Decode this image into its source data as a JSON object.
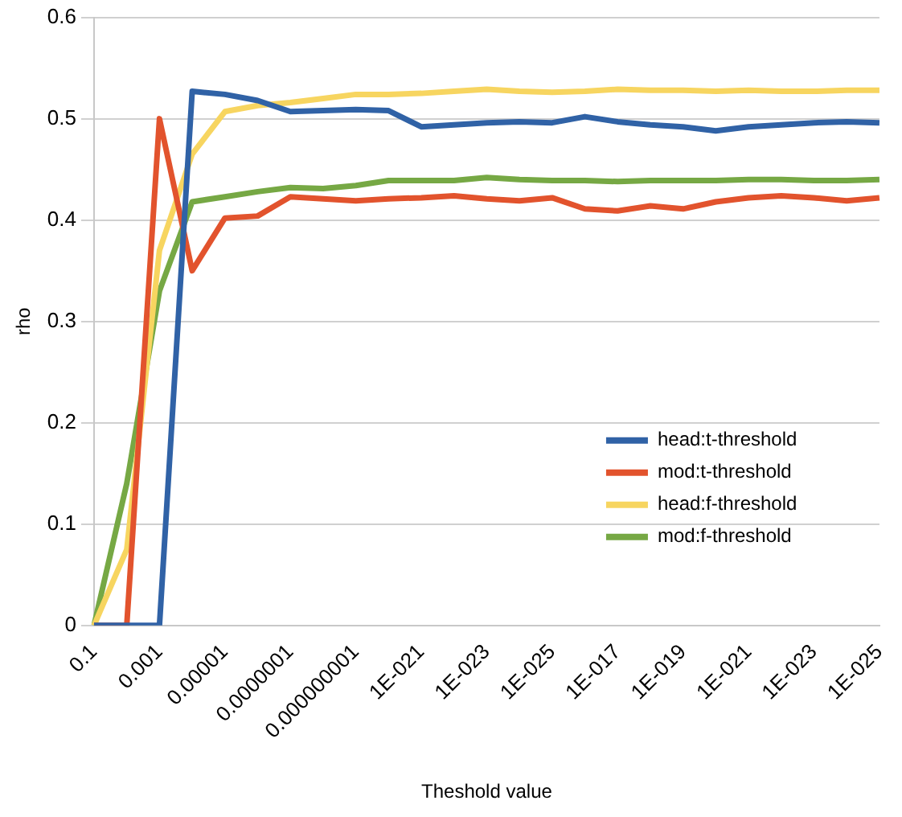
{
  "chart_data": {
    "type": "line",
    "xlabel": "Theshold value",
    "ylabel": "rho",
    "categories": [
      "0.1",
      null,
      "0.001",
      null,
      "0.00001",
      null,
      "0.0000001",
      null,
      "0.000000001",
      null,
      "1E-021",
      null,
      "1E-023",
      null,
      "1E-025",
      null,
      "1E-017",
      null,
      "1E-019",
      null,
      "1E-021",
      null,
      "1E-023",
      null,
      "1E-025"
    ],
    "series": [
      {
        "name": "head:t-threshold",
        "color": "#3062a6",
        "values": [
          0,
          0,
          0,
          0.527,
          0.524,
          0.518,
          0.507,
          0.508,
          0.509,
          0.508,
          0.492,
          0.494,
          0.496,
          0.497,
          0.496,
          0.502,
          0.497,
          0.494,
          0.492,
          0.488,
          0.492,
          0.494,
          0.496,
          0.497,
          0.496
        ]
      },
      {
        "name": "mod:t-threshold",
        "color": "#e2532d",
        "values": [
          0,
          0,
          0.5,
          0.35,
          0.402,
          0.404,
          0.423,
          0.421,
          0.419,
          0.421,
          0.422,
          0.424,
          0.421,
          0.419,
          0.422,
          0.411,
          0.409,
          0.414,
          0.411,
          0.418,
          0.422,
          0.424,
          0.422,
          0.419,
          0.422
        ]
      },
      {
        "name": "head:f-threshold",
        "color": "#f7d560",
        "values": [
          0,
          0.075,
          0.37,
          0.465,
          0.507,
          0.513,
          0.516,
          0.52,
          0.524,
          0.524,
          0.525,
          0.527,
          0.529,
          0.527,
          0.526,
          0.527,
          0.529,
          0.528,
          0.528,
          0.527,
          0.528,
          0.527,
          0.527,
          0.528,
          0.528
        ]
      },
      {
        "name": "mod:f-threshold",
        "color": "#76a844",
        "values": [
          0,
          0.14,
          0.33,
          0.418,
          0.423,
          0.428,
          0.432,
          0.431,
          0.434,
          0.439,
          0.439,
          0.439,
          0.442,
          0.44,
          0.439,
          0.439,
          0.438,
          0.439,
          0.439,
          0.439,
          0.44,
          0.44,
          0.439,
          0.439,
          0.44
        ]
      }
    ],
    "ylim": [
      0,
      0.6
    ],
    "yticks": [
      0,
      0.1,
      0.2,
      0.3,
      0.4,
      0.5,
      0.6
    ],
    "grid": "y",
    "legend": "bottom right",
    "marker": "none",
    "line_style": "solid"
  }
}
